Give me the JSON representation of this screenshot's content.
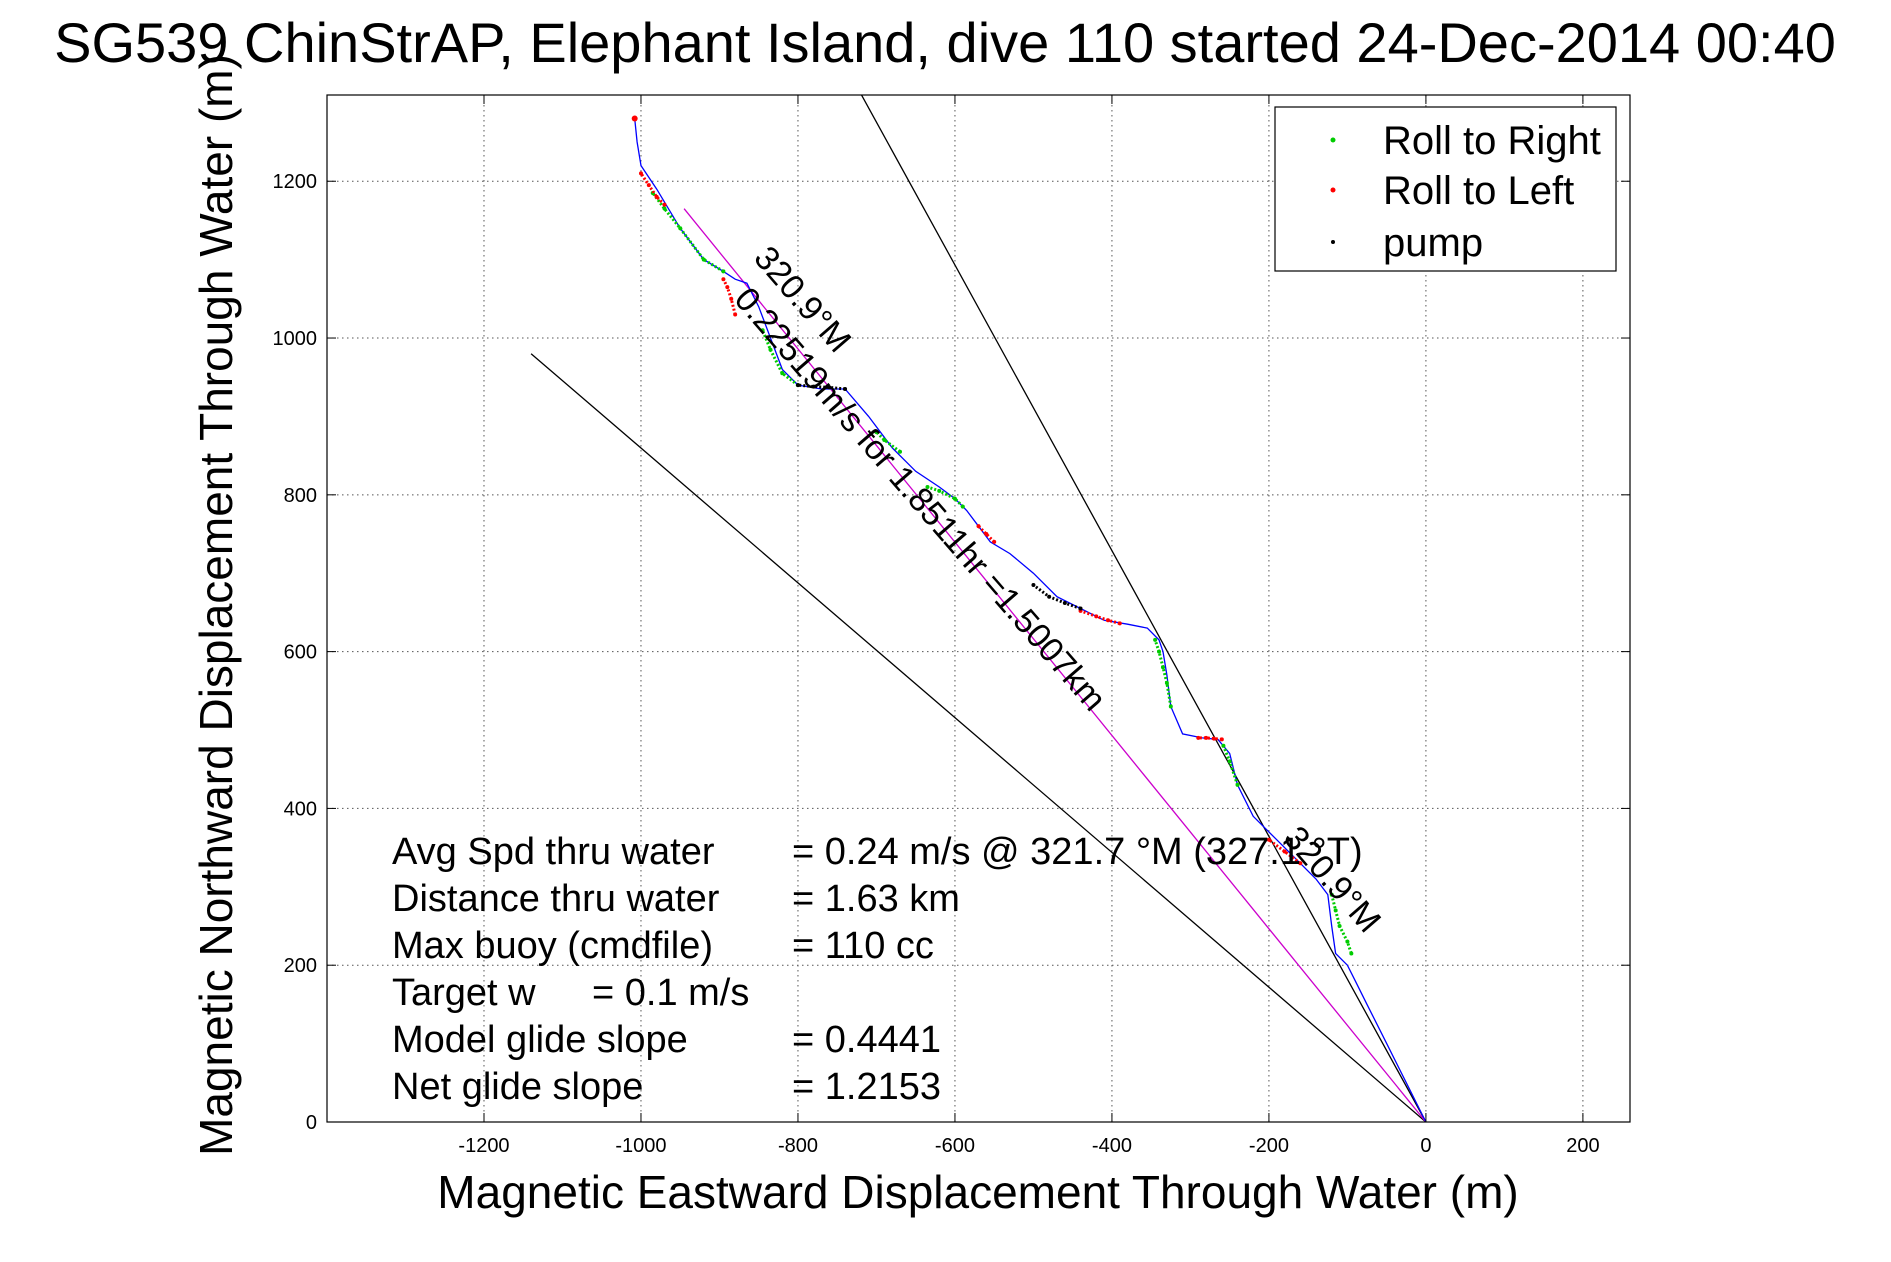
{
  "chart_data": {
    "type": "line",
    "title": "SG539 ChinStrAP, Elephant Island, dive 110 started 24-Dec-2014 00:40",
    "xlabel": "Magnetic Eastward Displacement Through Water (m)",
    "ylabel": "Magnetic Northward Displacement Through Water (m)",
    "xlim": [
      -1400,
      260
    ],
    "ylim": [
      0,
      1310
    ],
    "xticks": [
      -1200,
      -1000,
      -800,
      -600,
      -400,
      -200,
      0,
      200
    ],
    "xtick_labels": [
      "-1200",
      "-1000",
      "-800",
      "-600",
      "-400",
      "-200",
      "0",
      "200"
    ],
    "yticks": [
      0,
      200,
      400,
      600,
      800,
      1000,
      1200
    ],
    "ytick_labels": [
      "0",
      "200",
      "400",
      "600",
      "800",
      "1000",
      "1200"
    ],
    "grid": true,
    "legend": {
      "position": "top-right",
      "entries": [
        {
          "label": "Roll to Right",
          "color": "#00cc00"
        },
        {
          "label": "Roll to Left",
          "color": "#ff0000"
        },
        {
          "label": "pump",
          "color": "#000000"
        }
      ]
    },
    "track": {
      "color": "#0000ff",
      "x": [
        0,
        -20,
        -50,
        -75,
        -90,
        -100,
        -115,
        -120,
        -125,
        -140,
        -160,
        -190,
        -220,
        -240,
        -250,
        -265,
        -285,
        -310,
        -325,
        -330,
        -335,
        -340,
        -355,
        -380,
        -410,
        -440,
        -470,
        -500,
        -530,
        -555,
        -570,
        -585,
        -600,
        -620,
        -650,
        -680,
        -710,
        -740,
        -770,
        -800,
        -820,
        -835,
        -850,
        -865,
        -880,
        -895,
        -920,
        -950,
        -980,
        -1000,
        -1005,
        -1008
      ],
      "y": [
        0,
        40,
        100,
        150,
        180,
        200,
        215,
        250,
        290,
        310,
        330,
        360,
        390,
        430,
        470,
        488,
        490,
        495,
        530,
        570,
        600,
        615,
        630,
        635,
        640,
        655,
        670,
        700,
        725,
        740,
        760,
        780,
        795,
        810,
        830,
        860,
        900,
        935,
        935,
        940,
        960,
        1000,
        1040,
        1070,
        1075,
        1085,
        1100,
        1140,
        1190,
        1220,
        1250,
        1280
      ]
    },
    "roll_right_segments": [
      {
        "x": [
          -120,
          -115,
          -110,
          -100,
          -95
        ],
        "y": [
          290,
          270,
          250,
          230,
          215
        ]
      },
      {
        "x": [
          -240,
          -250,
          -258
        ],
        "y": [
          430,
          460,
          480
        ]
      },
      {
        "x": [
          -325,
          -330,
          -335,
          -340,
          -345
        ],
        "y": [
          530,
          560,
          580,
          600,
          615
        ]
      },
      {
        "x": [
          -590,
          -600,
          -620,
          -635
        ],
        "y": [
          785,
          795,
          805,
          810
        ]
      },
      {
        "x": [
          -670,
          -690,
          -700
        ],
        "y": [
          855,
          870,
          880
        ]
      },
      {
        "x": [
          -800,
          -820,
          -835,
          -845
        ],
        "y": [
          940,
          955,
          985,
          1010
        ]
      },
      {
        "x": [
          -895,
          -920,
          -950,
          -970,
          -985
        ],
        "y": [
          1085,
          1100,
          1140,
          1165,
          1185
        ]
      }
    ],
    "roll_left_segments": [
      {
        "x": [
          -160,
          -180,
          -200
        ],
        "y": [
          330,
          345,
          360
        ]
      },
      {
        "x": [
          -260,
          -270,
          -280,
          -290
        ],
        "y": [
          488,
          489,
          490,
          490
        ]
      },
      {
        "x": [
          -390,
          -405,
          -420,
          -440
        ],
        "y": [
          636,
          640,
          645,
          652
        ]
      },
      {
        "x": [
          -550,
          -560,
          -570
        ],
        "y": [
          740,
          750,
          760
        ]
      },
      {
        "x": [
          -880,
          -885,
          -890,
          -895
        ],
        "y": [
          1030,
          1050,
          1065,
          1075
        ]
      },
      {
        "x": [
          -970,
          -980,
          -990,
          -1000
        ],
        "y": [
          1170,
          1180,
          1195,
          1210
        ]
      }
    ],
    "pump_segments": [
      {
        "x": [
          -440,
          -460,
          -480,
          -500
        ],
        "y": [
          655,
          662,
          670,
          685
        ]
      },
      {
        "x": [
          -740,
          -760,
          -780,
          -800
        ],
        "y": [
          935,
          937,
          938,
          940
        ]
      }
    ],
    "reference_lines": [
      {
        "x": [
          0,
          -730
        ],
        "y": [
          0,
          1330
        ],
        "color": "#000000"
      },
      {
        "x": [
          0,
          -1140
        ],
        "y": [
          0,
          980
        ],
        "color": "#000000"
      },
      {
        "x": [
          0,
          -945
        ],
        "y": [
          0,
          1165
        ],
        "color": "#cc00cc"
      }
    ],
    "annotations": [
      {
        "text": "320.9°M",
        "x": -805,
        "y": 1040,
        "rotation": -130.9
      },
      {
        "text": "320.9°M",
        "x": -130,
        "y": 300,
        "rotation": -130.9
      },
      {
        "text": "0.22519m/s for 1.8511hr =1.5007km",
        "x": -655,
        "y": 785,
        "rotation": -130.9
      }
    ],
    "stats": [
      {
        "label": "Avg Spd thru water",
        "value": "=  0.24 m/s @ 321.7 °M (327.1 °T)"
      },
      {
        "label": "Distance thru water",
        "value": "=  1.63 km"
      },
      {
        "label": "Max buoy (cmdfile)",
        "value": "= 110 cc"
      },
      {
        "label": "Target w",
        "value": "= 0.1 m/s"
      },
      {
        "label": "Model glide slope",
        "value": "= 0.4441"
      },
      {
        "label": "Net glide slope",
        "value": "= 1.2153"
      }
    ]
  }
}
